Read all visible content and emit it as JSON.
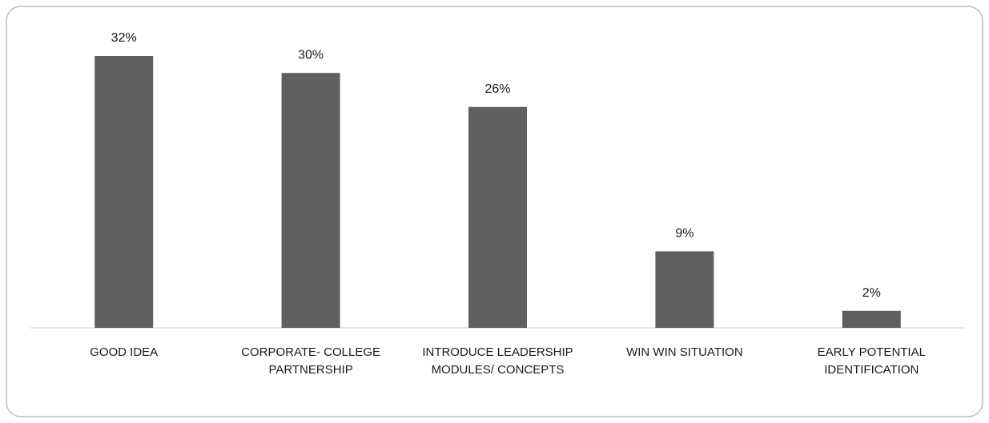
{
  "chart_data": {
    "type": "bar",
    "categories": [
      "GOOD IDEA",
      "CORPORATE- COLLEGE PARTNERSHIP",
      "INTRODUCE LEADERSHIP MODULES/ CONCEPTS",
      "WIN WIN SITUATION",
      "EARLY POTENTIAL IDENTIFICATION"
    ],
    "values": [
      32,
      30,
      26,
      9,
      2
    ],
    "value_labels": [
      "32%",
      "30%",
      "26%",
      "9%",
      "2%"
    ],
    "color": "#5f5f5f"
  }
}
